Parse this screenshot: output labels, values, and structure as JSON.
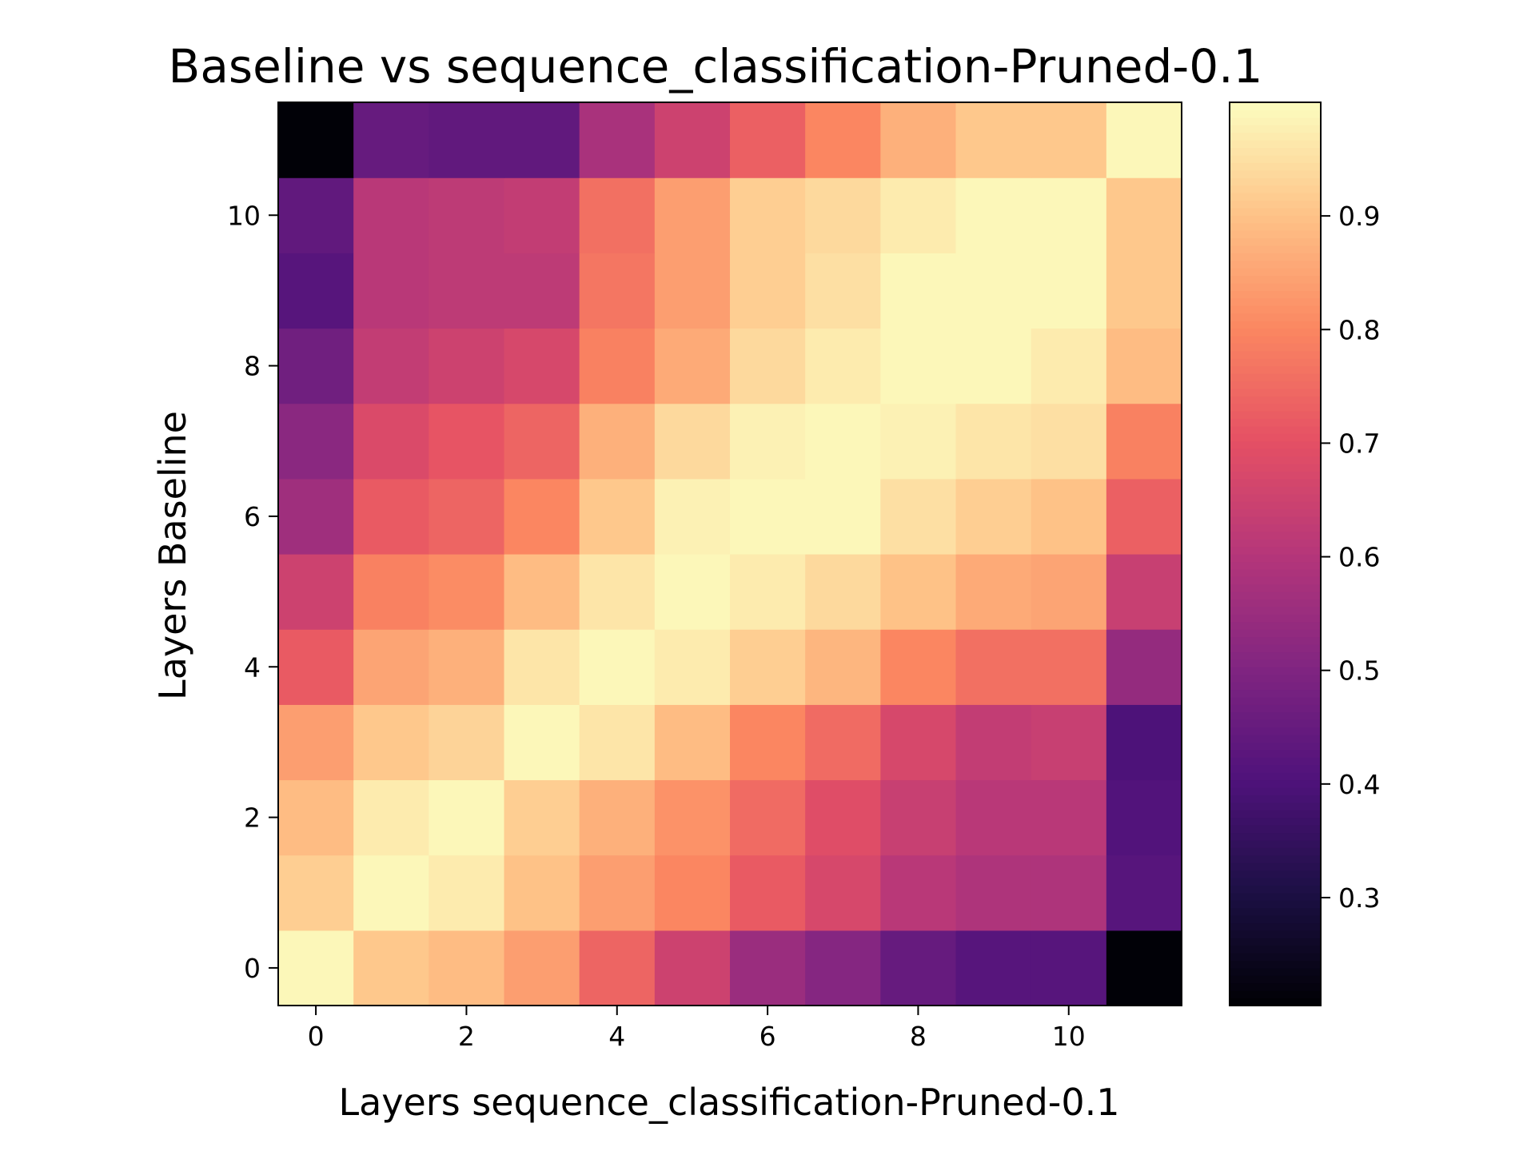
{
  "chart_data": {
    "type": "heatmap",
    "title": "Baseline vs sequence_classification-Pruned-0.1",
    "xlabel": "Layers sequence_classification-Pruned-0.1",
    "ylabel": "Layers Baseline",
    "x_ticks": [
      0,
      2,
      4,
      6,
      8,
      10
    ],
    "y_ticks": [
      0,
      2,
      4,
      6,
      8,
      10
    ],
    "colorbar_ticks": [
      0.3,
      0.4,
      0.5,
      0.6,
      0.7,
      0.8,
      0.9
    ],
    "colorbar_range": [
      0.205,
      1.0
    ],
    "colormap": "magma",
    "rows": 12,
    "cols": 12,
    "origin": "lower",
    "values": [
      [
        0.99,
        0.91,
        0.89,
        0.84,
        0.74,
        0.65,
        0.55,
        0.51,
        0.45,
        0.42,
        0.42,
        0.21
      ],
      [
        0.92,
        0.99,
        0.97,
        0.9,
        0.84,
        0.8,
        0.72,
        0.67,
        0.61,
        0.59,
        0.59,
        0.42
      ],
      [
        0.89,
        0.97,
        0.99,
        0.92,
        0.87,
        0.82,
        0.75,
        0.69,
        0.64,
        0.61,
        0.61,
        0.41
      ],
      [
        0.84,
        0.91,
        0.93,
        0.99,
        0.96,
        0.89,
        0.8,
        0.75,
        0.67,
        0.63,
        0.64,
        0.4
      ],
      [
        0.72,
        0.85,
        0.87,
        0.96,
        0.99,
        0.97,
        0.92,
        0.88,
        0.8,
        0.76,
        0.76,
        0.54
      ],
      [
        0.65,
        0.79,
        0.81,
        0.89,
        0.96,
        0.99,
        0.97,
        0.94,
        0.9,
        0.86,
        0.85,
        0.64
      ],
      [
        0.56,
        0.72,
        0.74,
        0.8,
        0.91,
        0.98,
        0.99,
        0.99,
        0.95,
        0.92,
        0.9,
        0.73
      ],
      [
        0.52,
        0.68,
        0.71,
        0.74,
        0.87,
        0.94,
        0.98,
        0.99,
        0.98,
        0.96,
        0.95,
        0.79
      ],
      [
        0.47,
        0.63,
        0.65,
        0.67,
        0.79,
        0.86,
        0.94,
        0.97,
        0.99,
        0.99,
        0.97,
        0.89
      ],
      [
        0.42,
        0.61,
        0.62,
        0.62,
        0.77,
        0.84,
        0.92,
        0.95,
        0.99,
        0.99,
        0.99,
        0.91
      ],
      [
        0.44,
        0.61,
        0.62,
        0.63,
        0.76,
        0.84,
        0.92,
        0.94,
        0.97,
        0.99,
        0.99,
        0.91
      ],
      [
        0.21,
        0.45,
        0.44,
        0.44,
        0.58,
        0.65,
        0.73,
        0.8,
        0.87,
        0.91,
        0.91,
        0.99
      ]
    ]
  }
}
